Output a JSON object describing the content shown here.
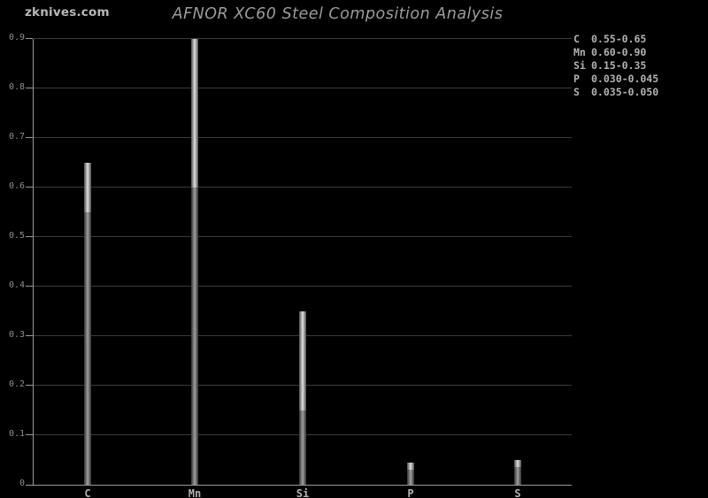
{
  "page": {
    "background_color": "#000000",
    "watermark_text": "zknives.com",
    "title_text": "AFNOR XC60 Steel Composition Analysis"
  },
  "colors": {
    "title": "#9c9c9c",
    "watermark": "#b8b8b8",
    "axis": "#9a9a9a",
    "gridline": "#3a3a3a",
    "tick_label": "#8f8f8f",
    "category_label": "#b2b2b2",
    "legend_text": "#b2b2b2",
    "bar_range_center": "#d4d4d4",
    "bar_base_center": "#979797"
  },
  "chart_data": {
    "type": "bar",
    "title": "AFNOR XC60 Steel Composition Analysis",
    "subtitle": "",
    "xlabel": "",
    "ylabel": "",
    "categories": [
      "C",
      "Mn",
      "Si",
      "P",
      "S"
    ],
    "series": [
      {
        "name": "min",
        "values": [
          0.55,
          0.6,
          0.15,
          0.03,
          0.035
        ]
      },
      {
        "name": "max",
        "values": [
          0.65,
          0.9,
          0.35,
          0.045,
          0.05
        ]
      }
    ],
    "bar_style": "thin range bars: dark segment from 0 to min value, bright segment from min to max value",
    "ylim": [
      0,
      0.9
    ],
    "yticks": [
      0,
      0.1,
      0.2,
      0.3,
      0.4,
      0.5,
      0.6,
      0.7,
      0.8,
      0.9
    ],
    "ytick_labels": [
      "0",
      "0.1",
      "0.2",
      "0.3",
      "0.4",
      "0.5",
      "0.6",
      "0.7",
      "0.8",
      "0.9"
    ],
    "grid": true,
    "legend_position": "top-right",
    "legend_entries": [
      {
        "symbol": "C",
        "range": "0.55-0.65"
      },
      {
        "symbol": "Mn",
        "range": "0.60-0.90"
      },
      {
        "symbol": "Si",
        "range": "0.15-0.35"
      },
      {
        "symbol": "P",
        "range": "0.030-0.045"
      },
      {
        "symbol": "S",
        "range": "0.035-0.050"
      }
    ]
  }
}
